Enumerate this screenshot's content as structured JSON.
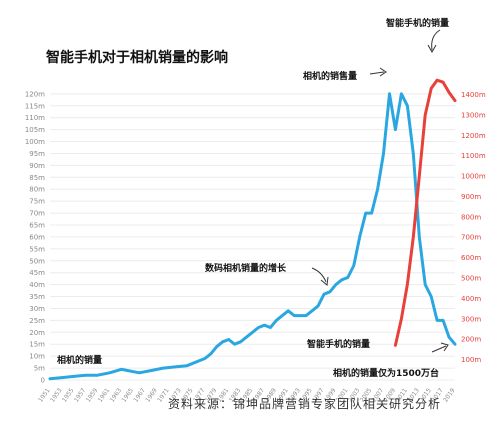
{
  "chart_data": {
    "type": "line",
    "title": "智能手机对于相机销量的影响",
    "source": "资料来源：锦坤品牌营销专家团队相关研究分析",
    "left_axis": {
      "ylim": [
        0,
        130
      ],
      "ticks": [
        "0",
        "5m",
        "10m",
        "15m",
        "20m",
        "25m",
        "30m",
        "35m",
        "40m",
        "45m",
        "50m",
        "55m",
        "60m",
        "65m",
        "70m",
        "75m",
        "80m",
        "85m",
        "90m",
        "95m",
        "100m",
        "105m",
        "110m",
        "115m",
        "120m"
      ],
      "tick_values": [
        0,
        5,
        10,
        15,
        20,
        25,
        30,
        35,
        40,
        45,
        50,
        55,
        60,
        65,
        70,
        75,
        80,
        85,
        90,
        95,
        100,
        105,
        110,
        115,
        120
      ],
      "color": "#8a8a8a"
    },
    "right_axis": {
      "ylim": [
        0,
        1520
      ],
      "ticks": [
        "100m",
        "200m",
        "300m",
        "400m",
        "500m",
        "600m",
        "700m",
        "800m",
        "900m",
        "1000m",
        "1100m",
        "1200m",
        "1300m",
        "1400m"
      ],
      "tick_values": [
        100,
        200,
        300,
        400,
        500,
        600,
        700,
        800,
        900,
        1000,
        1100,
        1200,
        1300,
        1400
      ],
      "color": "#e8403a"
    },
    "x_ticks": [
      "1951",
      "1953",
      "1955",
      "1957",
      "1959",
      "1961",
      "1963",
      "1965",
      "1967",
      "1969",
      "1971",
      "1973",
      "1975",
      "1977",
      "1979",
      "1981",
      "1983",
      "1985",
      "1987",
      "1989",
      "1991",
      "1993",
      "1995",
      "1997",
      "1999",
      "2001",
      "2003",
      "2005",
      "2007",
      "2009",
      "2011",
      "2013",
      "2015",
      "2017",
      "2019"
    ],
    "xlim": [
      1951,
      2019
    ],
    "series": [
      {
        "name": "相机的销售量",
        "axis": "left",
        "color": "#2aa7e0",
        "x": [
          1951,
          1953,
          1955,
          1957,
          1959,
          1961,
          1963,
          1964,
          1966,
          1968,
          1970,
          1972,
          1974,
          1976,
          1977,
          1978,
          1979,
          1980,
          1981,
          1982,
          1983,
          1984,
          1985,
          1986,
          1987,
          1988,
          1989,
          1990,
          1991,
          1992,
          1993,
          1994,
          1995,
          1996,
          1997,
          1998,
          1999,
          2000,
          2001,
          2002,
          2003,
          2004,
          2005,
          2006,
          2007,
          2008,
          2009,
          2010,
          2011,
          2012,
          2013,
          2014,
          2015,
          2016,
          2017,
          2018,
          2019
        ],
        "values": [
          0.5,
          1,
          1.5,
          2,
          2,
          3,
          4.5,
          4,
          3,
          4,
          5,
          5.5,
          6,
          8,
          9,
          11,
          14,
          16,
          17,
          15,
          16,
          18,
          20,
          22,
          23,
          22,
          25,
          27,
          29,
          27,
          27,
          27,
          29,
          31,
          36,
          37,
          40,
          42,
          43,
          48,
          60,
          70,
          70,
          80,
          95,
          120,
          105,
          120,
          115,
          95,
          60,
          40,
          35,
          25,
          25,
          18,
          15
        ]
      },
      {
        "name": "智能手机的销量",
        "axis": "right",
        "color": "#e8403a",
        "x": [
          2009,
          2010,
          2011,
          2012,
          2013,
          2014,
          2015,
          2016,
          2017,
          2018,
          2019
        ],
        "values": [
          170,
          300,
          470,
          700,
          1000,
          1300,
          1430,
          1470,
          1460,
          1410,
          1370
        ]
      }
    ],
    "annotations": [
      {
        "text": "智能手机的销量"
      },
      {
        "text": "相机的销售量"
      },
      {
        "text": "数码相机销量的增长"
      },
      {
        "text": "相机的销量"
      },
      {
        "text": "智能手机的销量"
      },
      {
        "text": "相机的销量仅为1500万台"
      }
    ]
  }
}
